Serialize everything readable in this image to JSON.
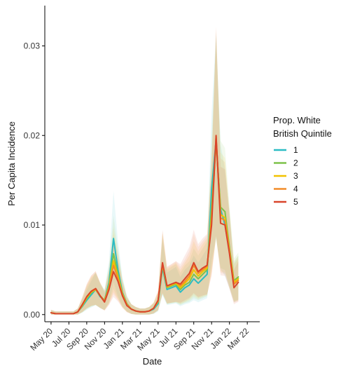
{
  "chart_data": {
    "type": "line",
    "title": "",
    "xlabel": "Date",
    "ylabel": "Per Capita Incidence",
    "x_tick_labels": [
      "May 20",
      "Jul 20",
      "Sep 20",
      "Nov 20",
      "Jan 21",
      "Mar 21",
      "May 21",
      "Jul 21",
      "Sep 21",
      "Nov 21",
      "Jan 22",
      "Mar 22"
    ],
    "x_tick_months": [
      0,
      2,
      4,
      6,
      8,
      10,
      12,
      14,
      16,
      18,
      20,
      22
    ],
    "xlim_months": [
      -0.7,
      23.4
    ],
    "y_ticks": [
      0.0,
      0.01,
      0.02,
      0.03
    ],
    "y_tick_labels": [
      "0.00",
      "0.01",
      "0.02",
      "0.03"
    ],
    "ylim": [
      -0.0008,
      0.0345
    ],
    "grid": false,
    "legend": {
      "title_lines": [
        "Prop. White",
        "British Quintile"
      ],
      "position": "right"
    },
    "x_months": [
      0,
      0.5,
      1,
      1.5,
      2,
      2.5,
      3,
      3.5,
      4,
      4.5,
      5,
      5.5,
      6,
      6.5,
      7,
      7.5,
      8,
      8.5,
      9,
      9.5,
      10,
      10.5,
      11,
      11.5,
      12,
      12.5,
      13,
      13.5,
      14,
      14.5,
      15,
      15.5,
      16,
      16.5,
      17,
      17.5,
      18,
      18.5,
      19,
      19.5,
      20,
      20.5,
      21,
      21.5,
      22
    ],
    "series": [
      {
        "name": "1",
        "color": "#2BBCC4",
        "values": [
          0.0002,
          0.0001,
          0.0001,
          0.0001,
          0.0001,
          0.0001,
          0.0003,
          0.0009,
          0.0016,
          0.0022,
          0.0028,
          0.002,
          0.0016,
          0.0036,
          0.0085,
          0.005,
          0.0025,
          0.0012,
          0.0006,
          0.0004,
          0.0003,
          0.0003,
          0.0004,
          0.0006,
          0.0012,
          0.0052,
          0.0028,
          0.003,
          0.0032,
          0.0025,
          0.003,
          0.0033,
          0.004,
          0.0035,
          0.004,
          0.0045,
          0.014,
          0.0195,
          0.0118,
          0.01,
          0.007,
          0.0035,
          0.004,
          null,
          null
        ]
      },
      {
        "name": "2",
        "color": "#7DC24A",
        "values": [
          0.0002,
          0.0001,
          0.0001,
          0.0001,
          0.0001,
          0.0001,
          0.0003,
          0.001,
          0.0018,
          0.0024,
          0.0028,
          0.0021,
          0.0016,
          0.0033,
          0.0068,
          0.0045,
          0.0024,
          0.0012,
          0.0006,
          0.0004,
          0.0003,
          0.0003,
          0.0004,
          0.0007,
          0.0014,
          0.0055,
          0.003,
          0.0032,
          0.0034,
          0.0028,
          0.0033,
          0.0036,
          0.0045,
          0.004,
          0.0045,
          0.005,
          0.012,
          0.0192,
          0.012,
          0.0115,
          0.0075,
          0.0038,
          0.0042,
          null,
          null
        ]
      },
      {
        "name": "3",
        "color": "#F2C200",
        "values": [
          0.0002,
          0.0001,
          0.0001,
          0.0001,
          0.0001,
          0.0001,
          0.0003,
          0.001,
          0.0019,
          0.0025,
          0.0028,
          0.0021,
          0.0015,
          0.0031,
          0.006,
          0.0042,
          0.0023,
          0.0011,
          0.0006,
          0.0004,
          0.0003,
          0.0003,
          0.0004,
          0.0007,
          0.0015,
          0.0056,
          0.0031,
          0.0033,
          0.0035,
          0.003,
          0.0035,
          0.004,
          0.005,
          0.0043,
          0.0048,
          0.0052,
          0.011,
          0.0196,
          0.0112,
          0.0108,
          0.0072,
          0.0036,
          0.004,
          null,
          null
        ]
      },
      {
        "name": "4",
        "color": "#F28C28",
        "values": [
          0.0002,
          0.0001,
          0.0001,
          0.0001,
          0.0001,
          0.0001,
          0.0003,
          0.0011,
          0.002,
          0.0026,
          0.0029,
          0.0021,
          0.0015,
          0.003,
          0.0055,
          0.004,
          0.0022,
          0.0011,
          0.0006,
          0.0004,
          0.0003,
          0.0003,
          0.0004,
          0.0007,
          0.0015,
          0.0057,
          0.0032,
          0.0034,
          0.0036,
          0.0032,
          0.0037,
          0.0043,
          0.0055,
          0.0046,
          0.005,
          0.0054,
          0.0105,
          0.0199,
          0.0108,
          0.0105,
          0.007,
          0.0034,
          0.0038,
          null,
          null
        ]
      },
      {
        "name": "5",
        "color": "#D9452B",
        "values": [
          0.0002,
          0.0001,
          0.0001,
          0.0001,
          0.0001,
          0.0001,
          0.0003,
          0.0011,
          0.002,
          0.0026,
          0.0029,
          0.0021,
          0.0014,
          0.0028,
          0.0048,
          0.0037,
          0.0021,
          0.001,
          0.0006,
          0.0004,
          0.0003,
          0.0003,
          0.0004,
          0.0007,
          0.0016,
          0.0058,
          0.0032,
          0.0034,
          0.0036,
          0.0034,
          0.004,
          0.0046,
          0.0058,
          0.0048,
          0.0052,
          0.0055,
          0.01,
          0.02,
          0.0102,
          0.01,
          0.0068,
          0.003,
          0.0036,
          null,
          null
        ]
      }
    ]
  }
}
